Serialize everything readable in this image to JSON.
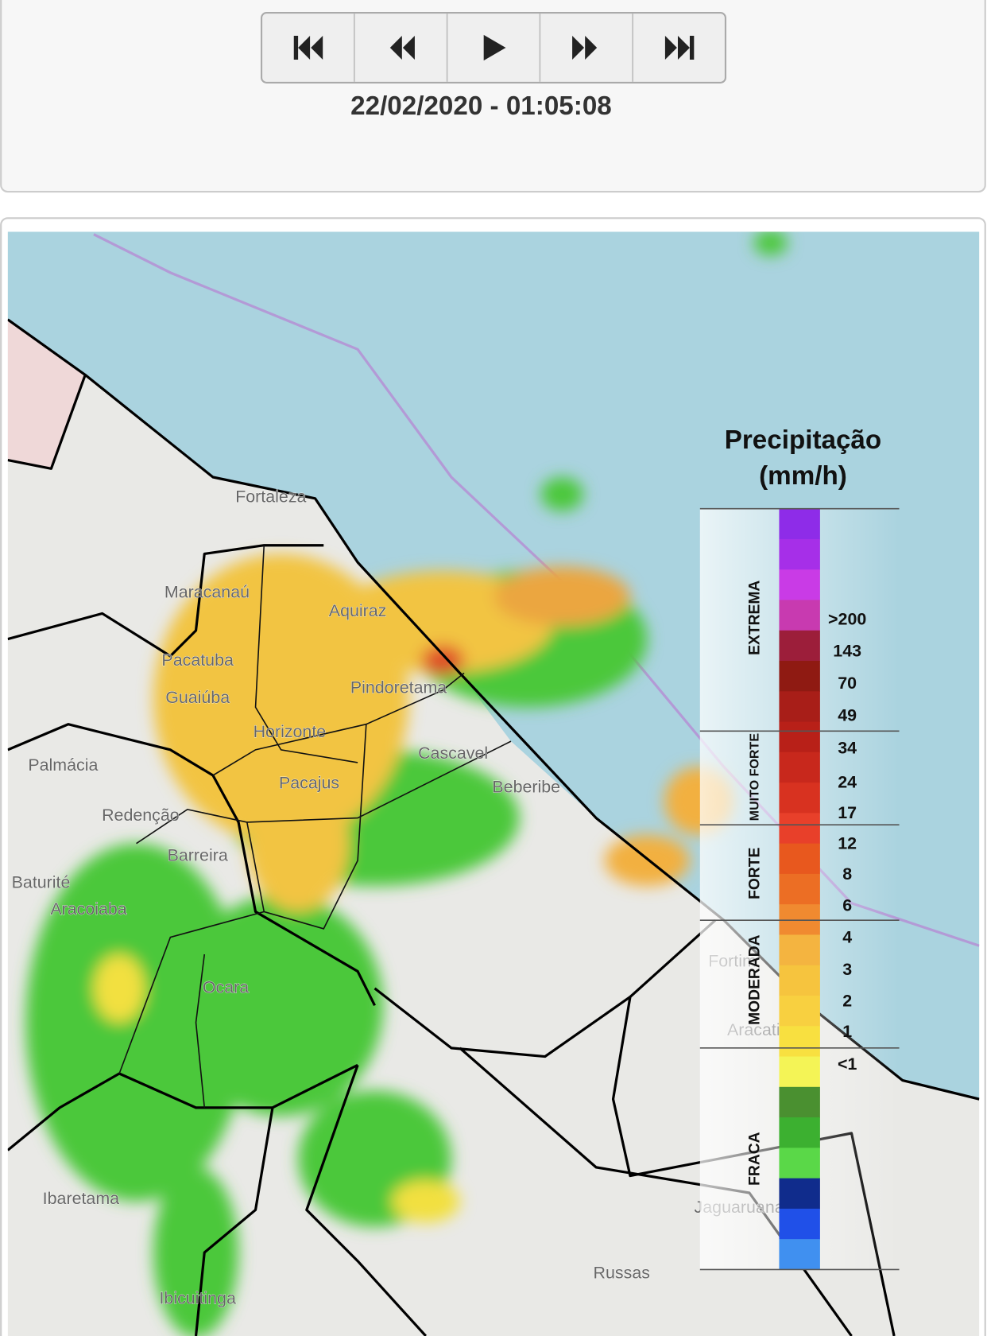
{
  "controls": {
    "timestamp": "22/02/2020 - 01:05:08"
  },
  "legend": {
    "title": "Precipitação",
    "unit": "(mm/h)",
    "levels": [
      ">200",
      "143",
      "70",
      "49",
      "34",
      "24",
      "17",
      "12",
      "8",
      "6",
      "4",
      "3",
      "2",
      "1",
      "<1"
    ],
    "categories": [
      "EXTREMA",
      "MUITO FORTE",
      "FORTE",
      "MODERADA",
      "FRACA"
    ]
  },
  "map": {
    "places": [
      "Fortaleza",
      "Maracanaú",
      "Aquiraz",
      "Pacatuba",
      "Guaiúba",
      "Pindoretama",
      "Horizonte",
      "Cascavel",
      "Palmácia",
      "Pacajus",
      "Beberibe",
      "Redenção",
      "Barreira",
      "Baturité",
      "Aracoiaba",
      "Ocara",
      "Fortim",
      "Aracati",
      "Ibaretama",
      "Jaguaruana",
      "Russas",
      "Ibicuitinga"
    ]
  }
}
